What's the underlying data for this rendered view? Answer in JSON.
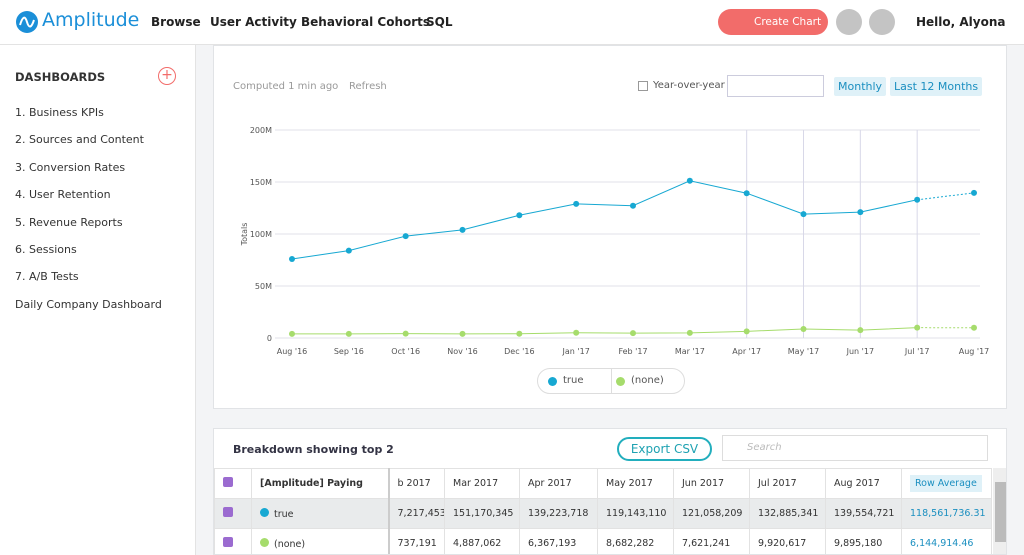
{
  "nav": {
    "logo": "Amplitude",
    "items": [
      "Browse",
      "User Activity",
      "Behavioral Cohorts",
      "SQL"
    ],
    "create": "Create Chart",
    "user": "Hello, Alyona"
  },
  "sidebar": {
    "title": "DASHBOARDS",
    "items": [
      "1. Business KPIs",
      "2. Sources and Content",
      "3. Conversion Rates",
      "4. User Retention",
      "5. Revenue Reports",
      "6. Sessions",
      "7. A/B Tests",
      "Daily Company Dashboard"
    ]
  },
  "toolbar": {
    "computed": "Computed 1 min ago",
    "refresh": "Refresh",
    "yoy": "Year-over-year",
    "interval": "Monthly",
    "range": "Last 12 Months"
  },
  "chart_data": {
    "type": "line",
    "y_label": "Totals",
    "categories": [
      "Aug '16",
      "Sep '16",
      "Oct '16",
      "Nov '16",
      "Dec '16",
      "Jan '17",
      "Feb '17",
      "Mar '17",
      "Apr '17",
      "May '17",
      "Jun '17",
      "Jul '17",
      "Aug '17"
    ],
    "series": [
      {
        "name": "true",
        "color": "#17a8d2",
        "values": [
          76000000,
          84000000,
          98000000,
          104000000,
          118000000,
          129000000,
          127217453,
          151170345,
          139223718,
          119143110,
          121058209,
          132885341,
          139554721
        ]
      },
      {
        "name": "(none)",
        "color": "#a6dc6c",
        "values": [
          4000000,
          4000000,
          4200000,
          4000000,
          4100000,
          5000000,
          4737191,
          4887062,
          6367193,
          8682282,
          7621241,
          9920617,
          9895180
        ]
      }
    ],
    "ylim": [
      0,
      200000000
    ],
    "yticks": [
      0,
      {
        "value": 50000000,
        "label": "50M"
      },
      {
        "value": 100000000,
        "label": "100M"
      },
      {
        "value": 150000000,
        "label": "150M"
      },
      {
        "value": 200000000,
        "label": "200M"
      }
    ],
    "grid": true
  },
  "breakdown": {
    "title": "Breakdown showing top 2",
    "export": "Export CSV",
    "search": "Search",
    "columns": [
      "[Amplitude] Paying",
      "b 2017",
      "Mar 2017",
      "Apr 2017",
      "May 2017",
      "Jun 2017",
      "Jul 2017",
      "Aug 2017",
      "Row Average"
    ],
    "rows": [
      [
        "true",
        "7,217,453",
        "151,170,345",
        "139,223,718",
        "119,143,110",
        "121,058,209",
        "132,885,341",
        "139,554,721",
        "118,561,736.31"
      ],
      [
        "(none)",
        "737,191",
        "4,887,062",
        "6,367,193",
        "8,682,282",
        "7,621,241",
        "9,920,617",
        "9,895,180",
        "6,144,914.46"
      ]
    ]
  }
}
